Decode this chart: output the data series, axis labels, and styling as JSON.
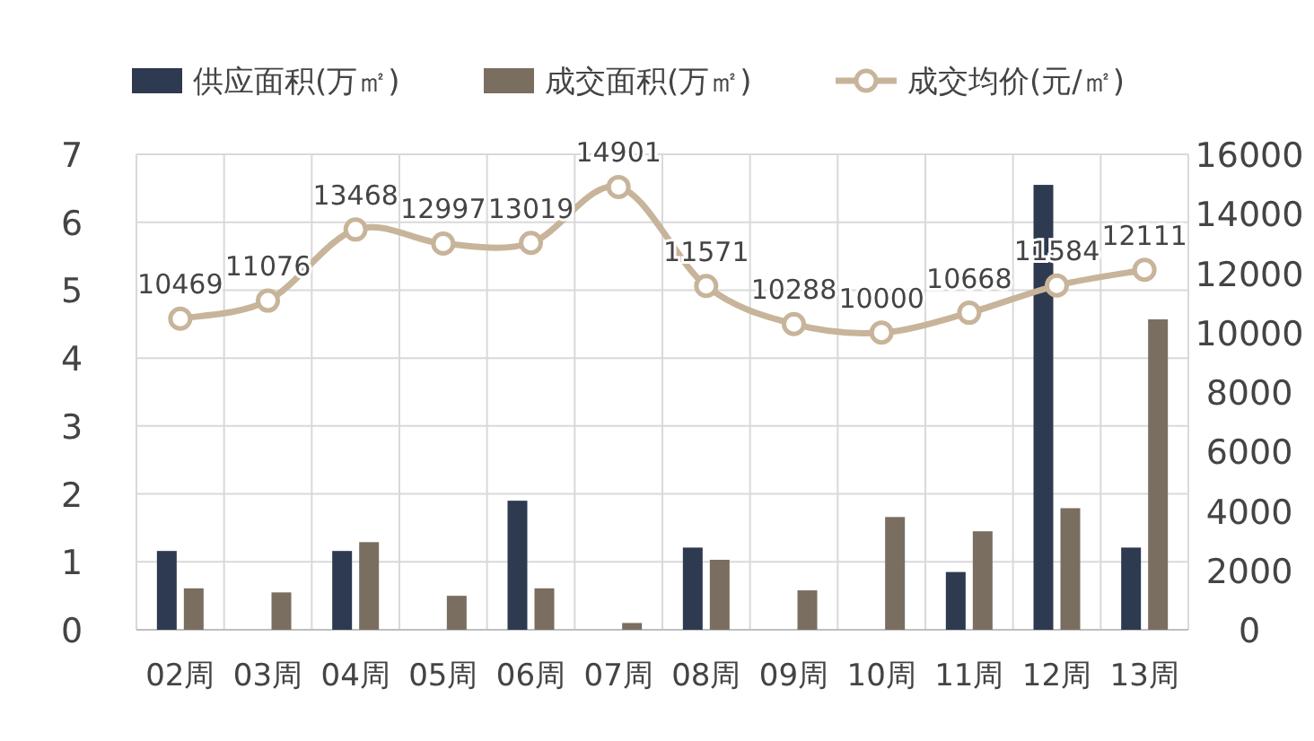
{
  "chart_data": {
    "type": "bar",
    "categories": [
      "02周",
      "03周",
      "04周",
      "05周",
      "06周",
      "07周",
      "08周",
      "09周",
      "10周",
      "11周",
      "12周",
      "13周"
    ],
    "series": [
      {
        "name": "供应面积(万㎡)",
        "color": "#2e3a50",
        "values": [
          1.16,
          null,
          1.16,
          null,
          1.9,
          null,
          1.21,
          null,
          null,
          0.85,
          6.55,
          1.21
        ]
      },
      {
        "name": "成交面积(万㎡)",
        "color": "#7a6e60",
        "values": [
          0.61,
          0.55,
          1.29,
          0.5,
          0.61,
          0.1,
          1.03,
          0.58,
          1.66,
          1.45,
          1.79,
          4.57
        ]
      },
      {
        "name": "成交均价(元/㎡)",
        "type": "line",
        "axis": "y2",
        "color": "#c8b49a",
        "values": [
          10469,
          11076,
          13468,
          12997,
          13019,
          14901,
          11571,
          10288,
          10000,
          10668,
          11584,
          12111
        ],
        "value_labels": [
          "10469",
          "11076",
          "13468",
          "12997",
          "13019",
          "14901",
          "11571",
          "10288",
          "10000",
          "10668",
          "11584",
          "12111"
        ]
      }
    ],
    "ylim": [
      0,
      7
    ],
    "yticks": [
      0,
      1,
      2,
      3,
      4,
      5,
      6,
      7
    ],
    "y2lim": [
      0,
      16000
    ],
    "y2ticks": [
      0,
      2000,
      4000,
      6000,
      8000,
      10000,
      12000,
      14000,
      16000
    ],
    "grid": true,
    "legend": "top",
    "marker": "circle"
  }
}
